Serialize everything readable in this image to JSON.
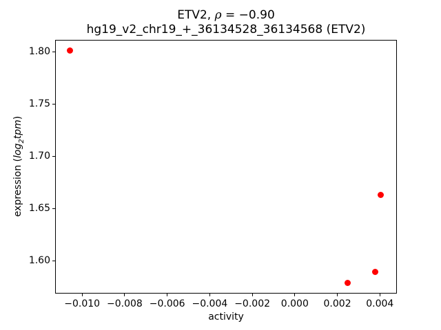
{
  "labels": {
    "title_gene": "ETV2, ",
    "title_rho": "ρ",
    "title_eq": " = −0.90",
    "title_line2": "hg19_v2_chr19_+_36134528_36134568 (ETV2)",
    "xlabel": "activity",
    "ylabel_prefix": "expression (",
    "ylabel_log": "log",
    "ylabel_sub": "2",
    "ylabel_tpm": "tpm",
    "ylabel_suffix": ")"
  },
  "chart_data": {
    "type": "scatter",
    "title": "ETV2, ρ = −0.90",
    "subtitle": "hg19_v2_chr19_+_36134528_36134568 (ETV2)",
    "xlabel": "activity",
    "ylabel": "expression (log2 tpm)",
    "correlation_rho": -0.9,
    "xlim": [
      -0.01127,
      0.0048
    ],
    "ylim": [
      1.5685,
      1.8115
    ],
    "xticks": [
      -0.01,
      -0.008,
      -0.006,
      -0.004,
      -0.002,
      0.0,
      0.002,
      0.004
    ],
    "xtick_labels": [
      "−0.010",
      "−0.008",
      "−0.006",
      "−0.004",
      "−0.002",
      "0.000",
      "0.002",
      "0.004"
    ],
    "yticks": [
      1.6,
      1.65,
      1.7,
      1.75,
      1.8
    ],
    "ytick_labels": [
      "1.60",
      "1.65",
      "1.70",
      "1.75",
      "1.80"
    ],
    "points": [
      {
        "x": -0.01056,
        "y": 1.801
      },
      {
        "x": 0.00249,
        "y": 1.579
      },
      {
        "x": 0.00378,
        "y": 1.589
      },
      {
        "x": 0.00404,
        "y": 1.663
      }
    ],
    "marker_color": "#ff0000",
    "grid": false,
    "legend": null
  }
}
